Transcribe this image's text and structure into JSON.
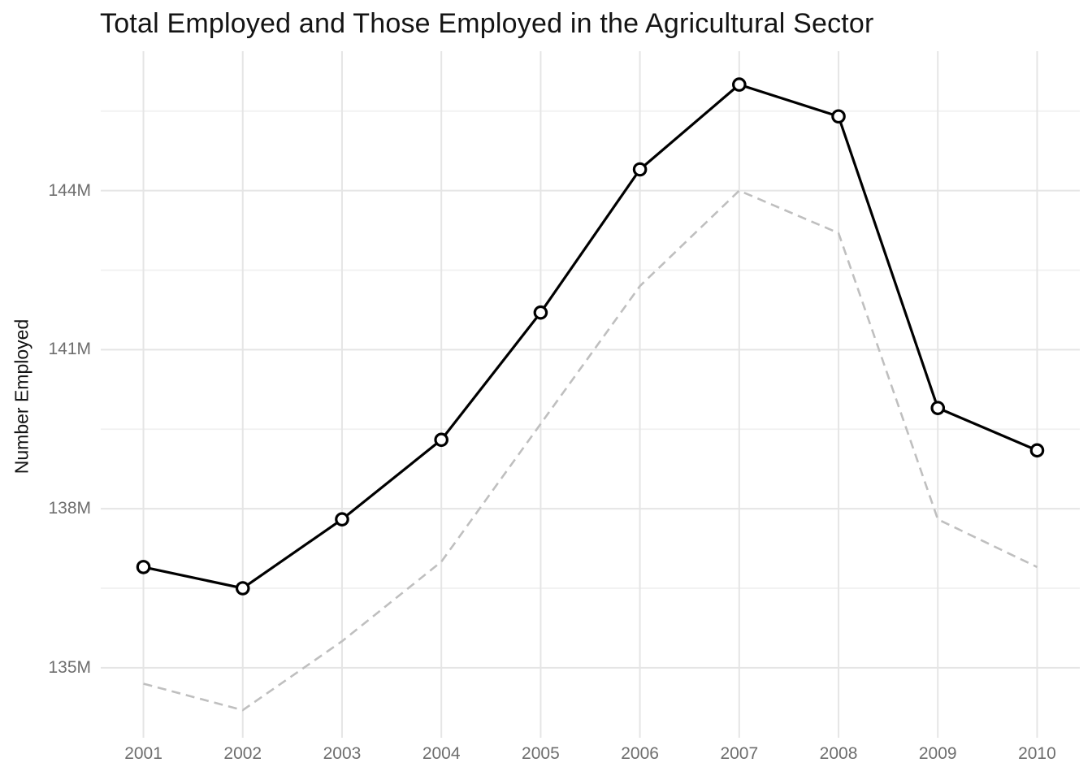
{
  "chart_data": {
    "type": "line",
    "title": "Total Employed and Those Employed in the Agricultural Sector",
    "xlabel": "",
    "ylabel": "Number Employed",
    "x": [
      2001,
      2002,
      2003,
      2004,
      2005,
      2006,
      2007,
      2008,
      2009,
      2010
    ],
    "x_tick_labels": [
      "2001",
      "2002",
      "2003",
      "2004",
      "2005",
      "2006",
      "2007",
      "2008",
      "2009",
      "2010"
    ],
    "y_tick_values": [
      135,
      138,
      141,
      144
    ],
    "y_tick_labels": [
      "135M",
      "138M",
      "141M",
      "144M"
    ],
    "y_minor_tick_values": [
      136.5,
      139.5,
      142.5,
      145.5
    ],
    "unit": "millions of people",
    "xlim": [
      2000.57,
      2010.43
    ],
    "ylim": [
      133.68,
      146.63
    ],
    "grid": "horizontal major+minor, vertical major only",
    "legend": "none",
    "series": [
      {
        "id": "series-solid-markers",
        "line_style": "solid",
        "marker": "open-circle",
        "color": "#000000",
        "values": [
          136.9,
          136.5,
          137.8,
          139.3,
          141.7,
          144.4,
          146.0,
          145.4,
          139.9,
          139.1
        ]
      },
      {
        "id": "series-dashed",
        "line_style": "dashed",
        "marker": "none",
        "color": "#BFBFBF",
        "values": [
          134.7,
          134.2,
          135.5,
          137.0,
          139.6,
          142.2,
          144.0,
          143.2,
          137.8,
          136.9
        ]
      }
    ],
    "colors": {
      "background": "#FFFFFF",
      "grid_major": "#E5E5E5",
      "grid_minor": "#F0F0F0",
      "tick_label": "#6E6E6E",
      "title_text": "#141414"
    }
  }
}
